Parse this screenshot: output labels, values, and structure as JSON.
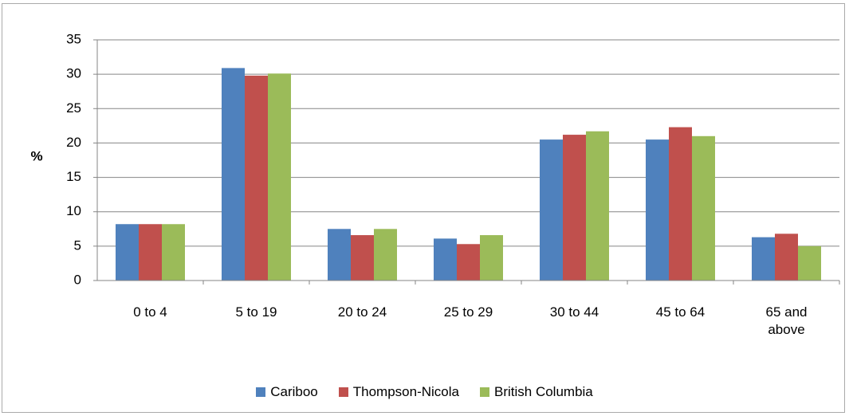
{
  "chart_data": {
    "type": "bar",
    "y_label": "%",
    "categories": [
      "0 to 4",
      "5 to 19",
      "20 to 24",
      "25 to 29",
      "30 to 44",
      "45 to 64",
      "65 and above"
    ],
    "series": [
      {
        "name": "Cariboo",
        "color": "#4f81bd",
        "values": [
          8.2,
          30.9,
          7.5,
          6.1,
          20.5,
          20.5,
          6.3
        ]
      },
      {
        "name": "Thompson-Nicola",
        "color": "#c0504d",
        "values": [
          8.2,
          29.8,
          6.6,
          5.3,
          21.2,
          22.3,
          6.8
        ]
      },
      {
        "name": "British Columbia",
        "color": "#9bbb59",
        "values": [
          8.2,
          30.1,
          7.5,
          6.6,
          21.7,
          21.0,
          5.0
        ]
      }
    ],
    "ylim": [
      0,
      35
    ],
    "yticks": [
      0,
      5,
      10,
      15,
      20,
      25,
      30,
      35
    ],
    "grid": true
  }
}
